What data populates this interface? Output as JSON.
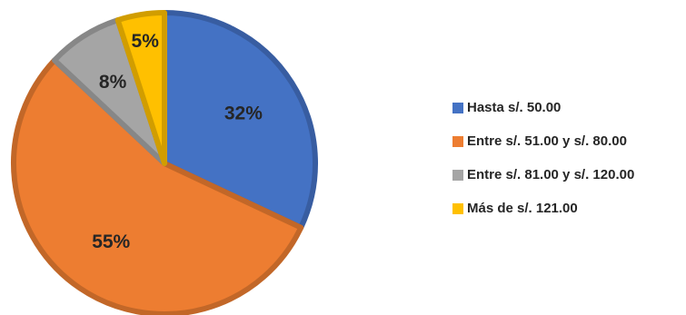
{
  "chart_data": {
    "type": "pie",
    "title": "",
    "categories": [
      "Hasta s/. 50.00",
      "Entre s/. 51.00 y s/. 80.00",
      "Entre s/. 81.00 y s/. 120.00",
      "Más de s/. 121.00"
    ],
    "values": [
      32,
      55,
      8,
      5
    ],
    "value_labels": [
      "32%",
      "55%",
      "8%",
      "5%"
    ],
    "colors": [
      "#4472C4",
      "#ED7D31",
      "#A5A5A5",
      "#FFC000"
    ],
    "start_angle_deg": 0,
    "direction": "clockwise",
    "legend_position": "right"
  }
}
